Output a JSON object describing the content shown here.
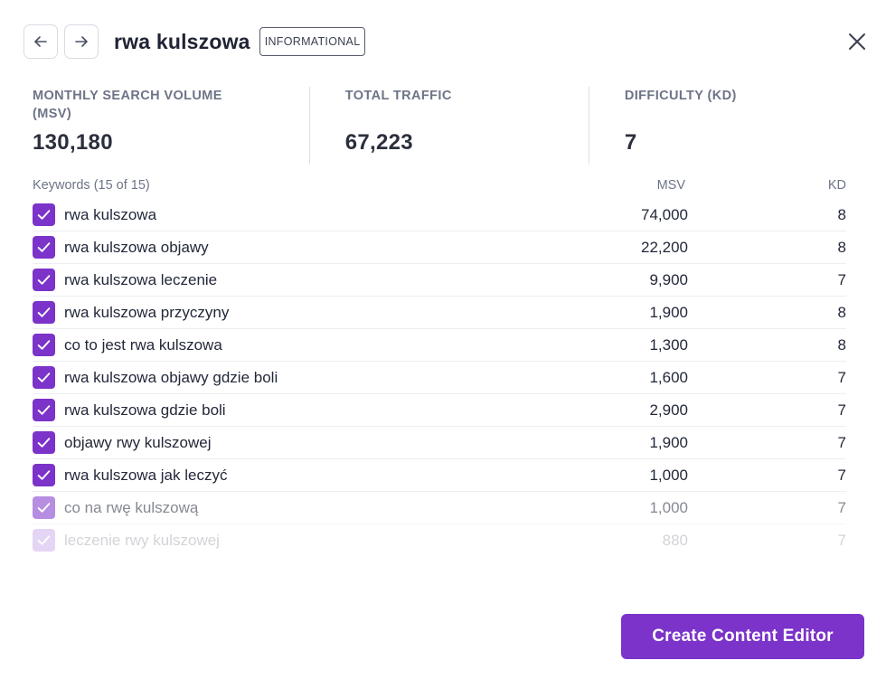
{
  "header": {
    "title": "rwa kulszowa",
    "intent": "INFORMATIONAL"
  },
  "stats": {
    "msv_label": "MONTHLY SEARCH VOLUME (MSV)",
    "msv_value": "130,180",
    "traffic_label": "TOTAL TRAFFIC",
    "traffic_value": "67,223",
    "kd_label": "DIFFICULTY (KD)",
    "kd_value": "7"
  },
  "table": {
    "count_label": "Keywords (15 of 15)",
    "msv_header": "MSV",
    "kd_header": "KD",
    "rows": [
      {
        "keyword": "rwa kulszowa",
        "msv": "74,000",
        "kd": "8",
        "checked": true
      },
      {
        "keyword": "rwa kulszowa objawy",
        "msv": "22,200",
        "kd": "8",
        "checked": true
      },
      {
        "keyword": "rwa kulszowa leczenie",
        "msv": "9,900",
        "kd": "7",
        "checked": true
      },
      {
        "keyword": "rwa kulszowa przyczyny",
        "msv": "1,900",
        "kd": "8",
        "checked": true
      },
      {
        "keyword": "co to jest rwa kulszowa",
        "msv": "1,300",
        "kd": "8",
        "checked": true
      },
      {
        "keyword": "rwa kulszowa objawy gdzie boli",
        "msv": "1,600",
        "kd": "7",
        "checked": true
      },
      {
        "keyword": "rwa kulszowa gdzie boli",
        "msv": "2,900",
        "kd": "7",
        "checked": true
      },
      {
        "keyword": "objawy rwy kulszowej",
        "msv": "1,900",
        "kd": "7",
        "checked": true
      },
      {
        "keyword": "rwa kulszowa jak leczyć",
        "msv": "1,000",
        "kd": "7",
        "checked": true
      },
      {
        "keyword": "co na rwę kulszową",
        "msv": "1,000",
        "kd": "7",
        "checked": true
      },
      {
        "keyword": "leczenie rwy kulszowej",
        "msv": "880",
        "kd": "7",
        "checked": true
      }
    ]
  },
  "footer": {
    "cta_label": "Create Content Editor"
  },
  "colors": {
    "accent": "#7b33c9",
    "text": "#1f2333",
    "muted": "#6e7487"
  },
  "icons": {
    "back": "arrow-left-icon",
    "forward": "arrow-right-icon",
    "close": "close-icon",
    "check": "check-icon"
  }
}
